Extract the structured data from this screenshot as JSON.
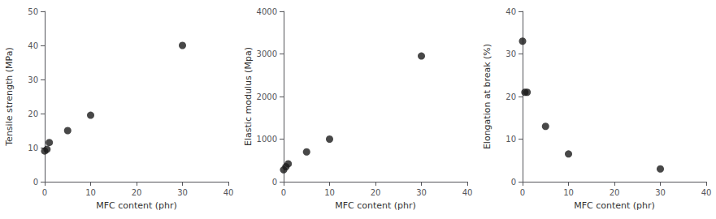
{
  "chart_data": [
    {
      "type": "scatter",
      "x": [
        0,
        0.5,
        1,
        5,
        10,
        30
      ],
      "values": [
        9,
        9.5,
        11.5,
        15,
        19.5,
        40
      ],
      "xlabel": "MFC content (phr)",
      "ylabel": "Tensile strength (MPa)",
      "xlim": [
        0,
        40
      ],
      "ylim": [
        0,
        50
      ],
      "xticks": [
        0,
        10,
        20,
        30,
        40
      ],
      "yticks": [
        0,
        10,
        20,
        30,
        40,
        50
      ],
      "color": "#1a1a1a",
      "marker": "circle",
      "grid": false
    },
    {
      "type": "scatter",
      "x": [
        0,
        0.5,
        1,
        5,
        10,
        30
      ],
      "values": [
        280,
        350,
        420,
        700,
        1000,
        2950
      ],
      "xlabel": "MFC content (phr)",
      "ylabel": "Elastic modulus (Mpa)",
      "xlim": [
        0,
        40
      ],
      "ylim": [
        0,
        4000
      ],
      "xticks": [
        0,
        10,
        20,
        30,
        40
      ],
      "yticks": [
        0,
        1000,
        2000,
        3000,
        4000
      ],
      "color": "#1a1a1a",
      "marker": "circle",
      "grid": false
    },
    {
      "type": "scatter",
      "x": [
        0,
        0.5,
        1,
        5,
        10,
        30
      ],
      "values": [
        33,
        21,
        21,
        13,
        6.5,
        3
      ],
      "xlabel": "MFC content (phr)",
      "ylabel": "Elongation at break (%)",
      "xlim": [
        0,
        40
      ],
      "ylim": [
        0,
        40
      ],
      "xticks": [
        0,
        10,
        20,
        30,
        40
      ],
      "yticks": [
        0,
        10,
        20,
        30,
        40
      ],
      "color": "#1a1a1a",
      "marker": "circle",
      "grid": false
    }
  ]
}
